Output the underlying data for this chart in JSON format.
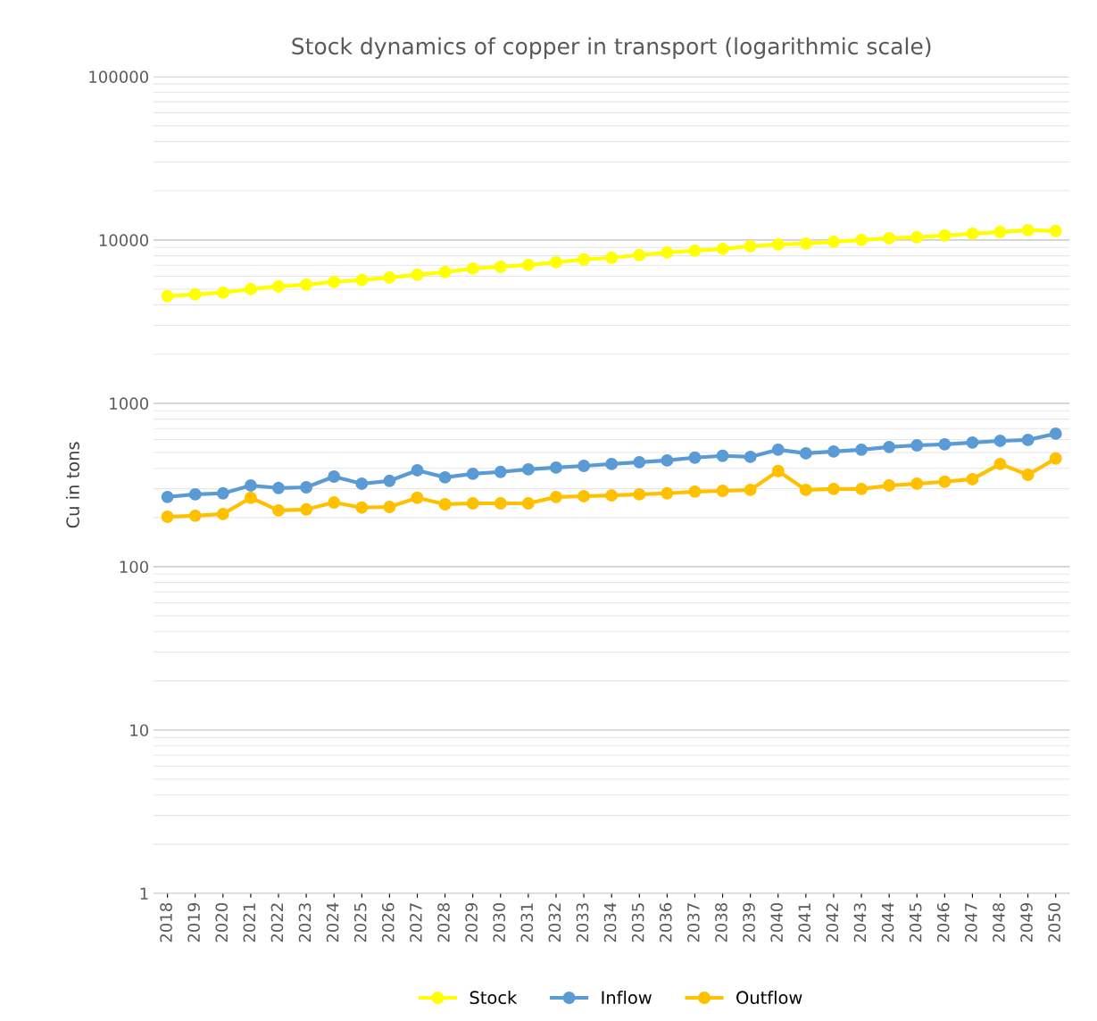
{
  "chart_data": {
    "type": "line",
    "title": "Stock dynamics of copper in transport (logarithmic scale)",
    "ylabel": "Cu in tons",
    "categories": [
      "2018",
      "2019",
      "2020",
      "2021",
      "2022",
      "2023",
      "2024",
      "2025",
      "2026",
      "2027",
      "2028",
      "2029",
      "2030",
      "2031",
      "2032",
      "2033",
      "2034",
      "2035",
      "2036",
      "2037",
      "2038",
      "2039",
      "2040",
      "2041",
      "2042",
      "2043",
      "2044",
      "2045",
      "2046",
      "2047",
      "2048",
      "2049",
      "2050"
    ],
    "series": [
      {
        "name": "Stock",
        "color": "#ffff00",
        "values": [
          4530,
          4640,
          4760,
          5000,
          5200,
          5330,
          5540,
          5680,
          5890,
          6120,
          6360,
          6680,
          6850,
          7030,
          7300,
          7590,
          7780,
          8080,
          8380,
          8600,
          8820,
          9160,
          9390,
          9510,
          9750,
          10000,
          10250,
          10380,
          10650,
          10920,
          11200,
          11480,
          11350
        ]
      },
      {
        "name": "Inflow",
        "color": "#5b9bd5",
        "values": [
          267,
          277,
          281,
          314,
          303,
          306,
          356,
          322,
          335,
          389,
          352,
          370,
          380,
          394,
          404,
          414,
          425,
          436,
          447,
          465,
          477,
          470,
          520,
          494,
          507,
          520,
          540,
          553,
          561,
          575,
          589,
          597,
          652
        ]
      },
      {
        "name": "Outflow",
        "color": "#ffc000",
        "values": [
          202,
          205,
          210,
          264,
          221,
          224,
          247,
          230,
          232,
          264,
          241,
          244,
          244,
          244,
          267,
          270,
          273,
          277,
          281,
          288,
          291,
          295,
          385,
          295,
          299,
          299,
          314,
          322,
          331,
          343,
          425,
          365,
          459
        ]
      }
    ],
    "log": "y",
    "ylim": [
      1,
      100000
    ],
    "yticks": [
      1,
      10,
      100,
      1000,
      10000,
      100000
    ],
    "grid": "y",
    "legend": "bottom",
    "marker": "circle",
    "line_style": "solid"
  }
}
